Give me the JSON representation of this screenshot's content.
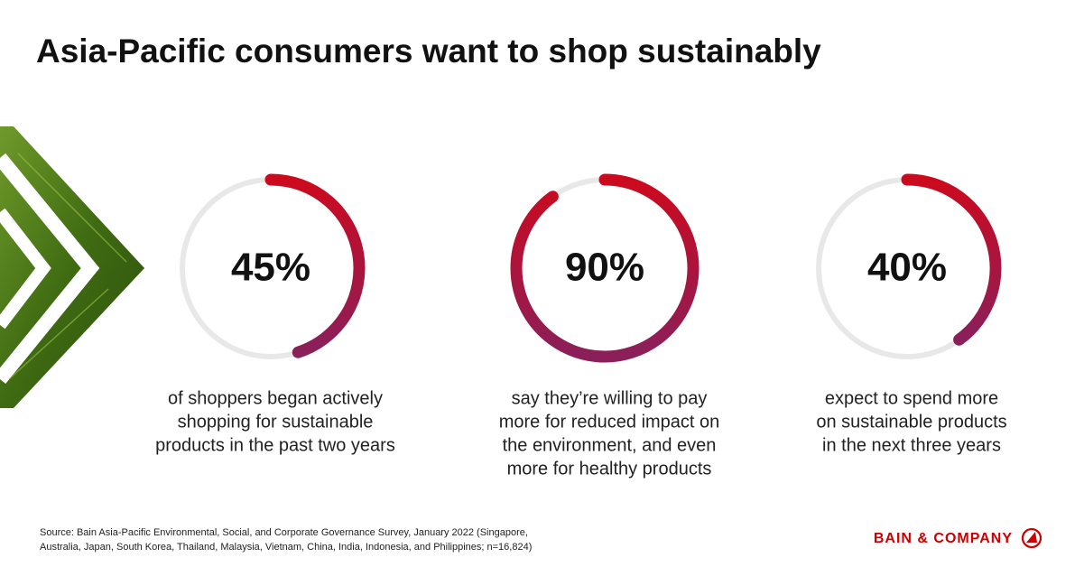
{
  "title": "Asia-Pacific consumers want to shop sustainably",
  "chart_data": [
    {
      "type": "donut",
      "values": [
        45
      ],
      "value_labels": [
        "45%"
      ],
      "color": [
        "#cc0a1e",
        "#8a1f5a"
      ],
      "track_color": "#e8e8e8",
      "caption": [
        "of shoppers began actively",
        "shopping for sustainable",
        "products in the past two years"
      ]
    },
    {
      "type": "donut",
      "values": [
        90
      ],
      "value_labels": [
        "90%"
      ],
      "color": [
        "#cc0a1e",
        "#8a1f5a"
      ],
      "track_color": "#e8e8e8",
      "caption": [
        "say they’re willing to pay",
        "more for reduced impact on",
        "the environment, and even",
        "more for healthy products"
      ]
    },
    {
      "type": "donut",
      "values": [
        40
      ],
      "value_labels": [
        "40%"
      ],
      "color": [
        "#cc0a1e",
        "#8a1f5a"
      ],
      "track_color": "#e8e8e8",
      "caption": [
        "expect to spend more",
        "on sustainable products",
        "in the next three years"
      ]
    }
  ],
  "source": [
    "Source: Bain Asia-Pacific Environmental, Social, and Corporate Governance Survey, January 2022 (Singapore,",
    "Australia, Japan, South Korea, Thailand, Malaysia, Vietnam, China, India, Indonesia, and Philippines; n=16,824)"
  ],
  "brand": "BAIN & COMPANY"
}
